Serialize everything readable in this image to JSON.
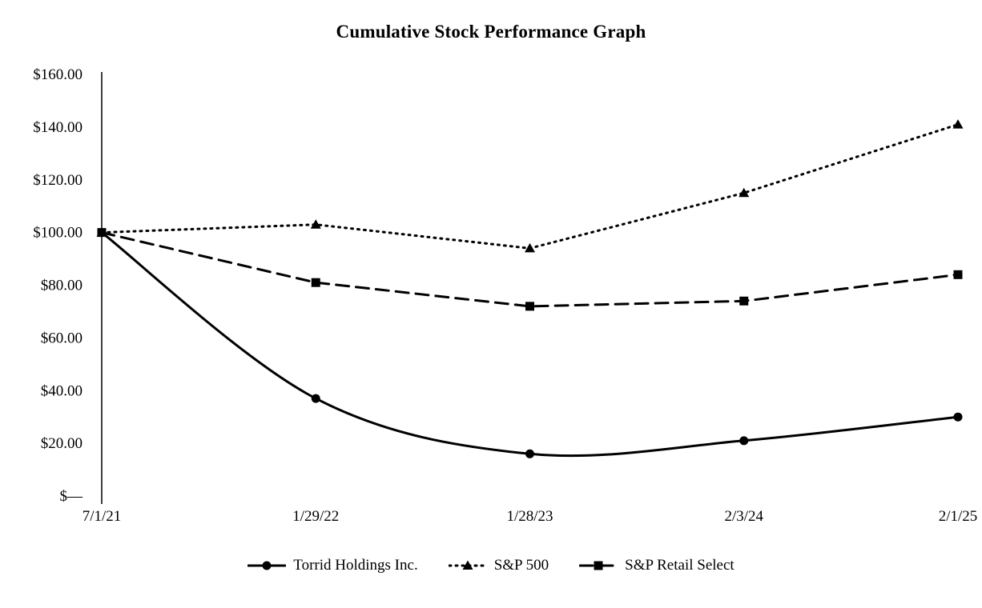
{
  "chart_data": {
    "type": "line",
    "title": "Cumulative Stock Performance Graph",
    "x_categories": [
      "7/1/21",
      "1/29/22",
      "1/28/23",
      "2/3/24",
      "2/1/25"
    ],
    "y_ticks": [
      "$—",
      "$20.00",
      "$40.00",
      "$60.00",
      "$80.00",
      "$100.00",
      "$120.00",
      "$140.00",
      "$160.00"
    ],
    "ylim": [
      0,
      160
    ],
    "y_step": 20,
    "grid": false,
    "legend_position": "bottom",
    "color": "#000000",
    "background": "#ffffff",
    "series": [
      {
        "name": "Torrid Holdings Inc.",
        "marker": "circle",
        "line_style": "solid",
        "smooth": true,
        "values": [
          100,
          37,
          16,
          21,
          30
        ]
      },
      {
        "name": "S&P 500",
        "marker": "triangle",
        "line_style": "dotted",
        "smooth": false,
        "values": [
          100,
          103,
          94,
          115,
          141
        ]
      },
      {
        "name": "S&P Retail Select",
        "marker": "square",
        "line_style": "dashed",
        "smooth": false,
        "values": [
          100,
          81,
          72,
          74,
          84
        ]
      }
    ]
  }
}
